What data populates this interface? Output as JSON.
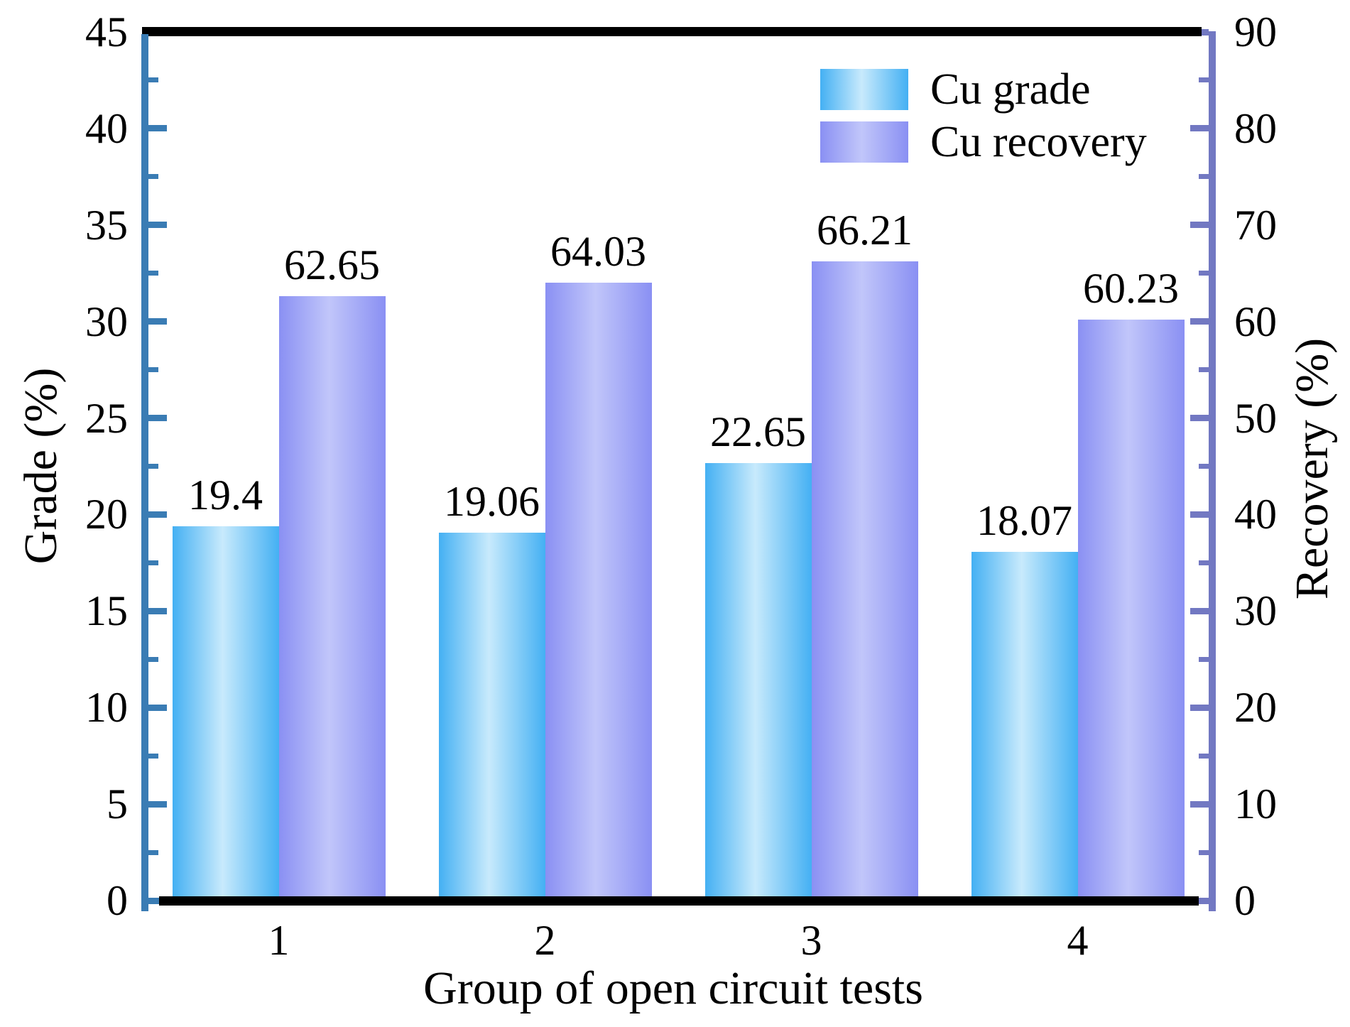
{
  "figure": {
    "background": "#ffffff",
    "text_color": "#000000"
  },
  "chart_data": {
    "type": "bar",
    "title": "",
    "xlabel": "Group of open circuit tests",
    "categories": [
      "1",
      "2",
      "3",
      "4"
    ],
    "series": [
      {
        "name": "Cu grade",
        "axis": "left",
        "values": [
          19.4,
          19.06,
          22.65,
          18.07
        ],
        "value_labels": [
          "19.4",
          "19.06",
          "22.65",
          "18.07"
        ],
        "color_edge": "#44b0f3",
        "color_center": "#c8eafc"
      },
      {
        "name": "Cu recovery",
        "axis": "right",
        "values": [
          62.65,
          64.03,
          66.21,
          60.23
        ],
        "value_labels": [
          "62.65",
          "64.03",
          "66.21",
          "60.23"
        ],
        "color_edge": "#8a90f3",
        "color_center": "#c1c6fa"
      }
    ],
    "left_axis": {
      "title": "Grade (%)",
      "min": 0,
      "max": 45,
      "major_step": 5,
      "minor_step": 2.5,
      "tick_labels": [
        "0",
        "5",
        "10",
        "15",
        "20",
        "25",
        "30",
        "35",
        "40",
        "45"
      ],
      "color": "#3a7cb4"
    },
    "right_axis": {
      "title": "Recovery (%)",
      "min": 0,
      "max": 90,
      "major_step": 10,
      "minor_step": 5,
      "tick_labels": [
        "0",
        "10",
        "20",
        "30",
        "40",
        "50",
        "60",
        "70",
        "80",
        "90"
      ],
      "color": "#7278c2"
    },
    "grid": false,
    "legend_position": "upper-right-inside",
    "bar_group_layout": "grade-left-of-center, recovery-right-of-center, bars adjacent"
  }
}
